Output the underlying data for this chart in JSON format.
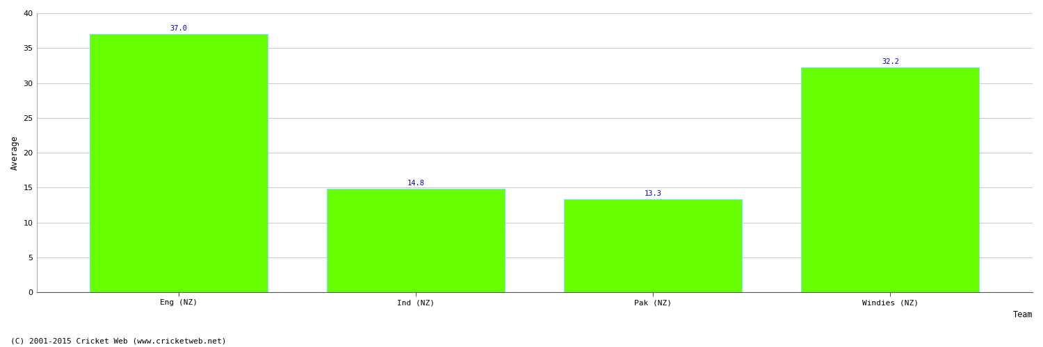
{
  "categories": [
    "Eng (NZ)",
    "Ind (NZ)",
    "Pak (NZ)",
    "Windies (NZ)"
  ],
  "values": [
    37.0,
    14.8,
    13.3,
    32.2
  ],
  "bar_color": "#66ff00",
  "bar_edge_color": "#88ddff",
  "label_color": "#0000cc",
  "xlabel": "Team",
  "ylabel": "Average",
  "ylim": [
    0,
    40
  ],
  "yticks": [
    0,
    5,
    10,
    15,
    20,
    25,
    30,
    35,
    40
  ],
  "footnote": "(C) 2001-2015 Cricket Web (www.cricketweb.net)",
  "label_fontsize": 7.5,
  "axis_fontsize": 8.5,
  "tick_fontsize": 8,
  "footnote_fontsize": 8,
  "grid_color": "#cccccc",
  "background_color": "#ffffff",
  "bar_width": 0.75
}
